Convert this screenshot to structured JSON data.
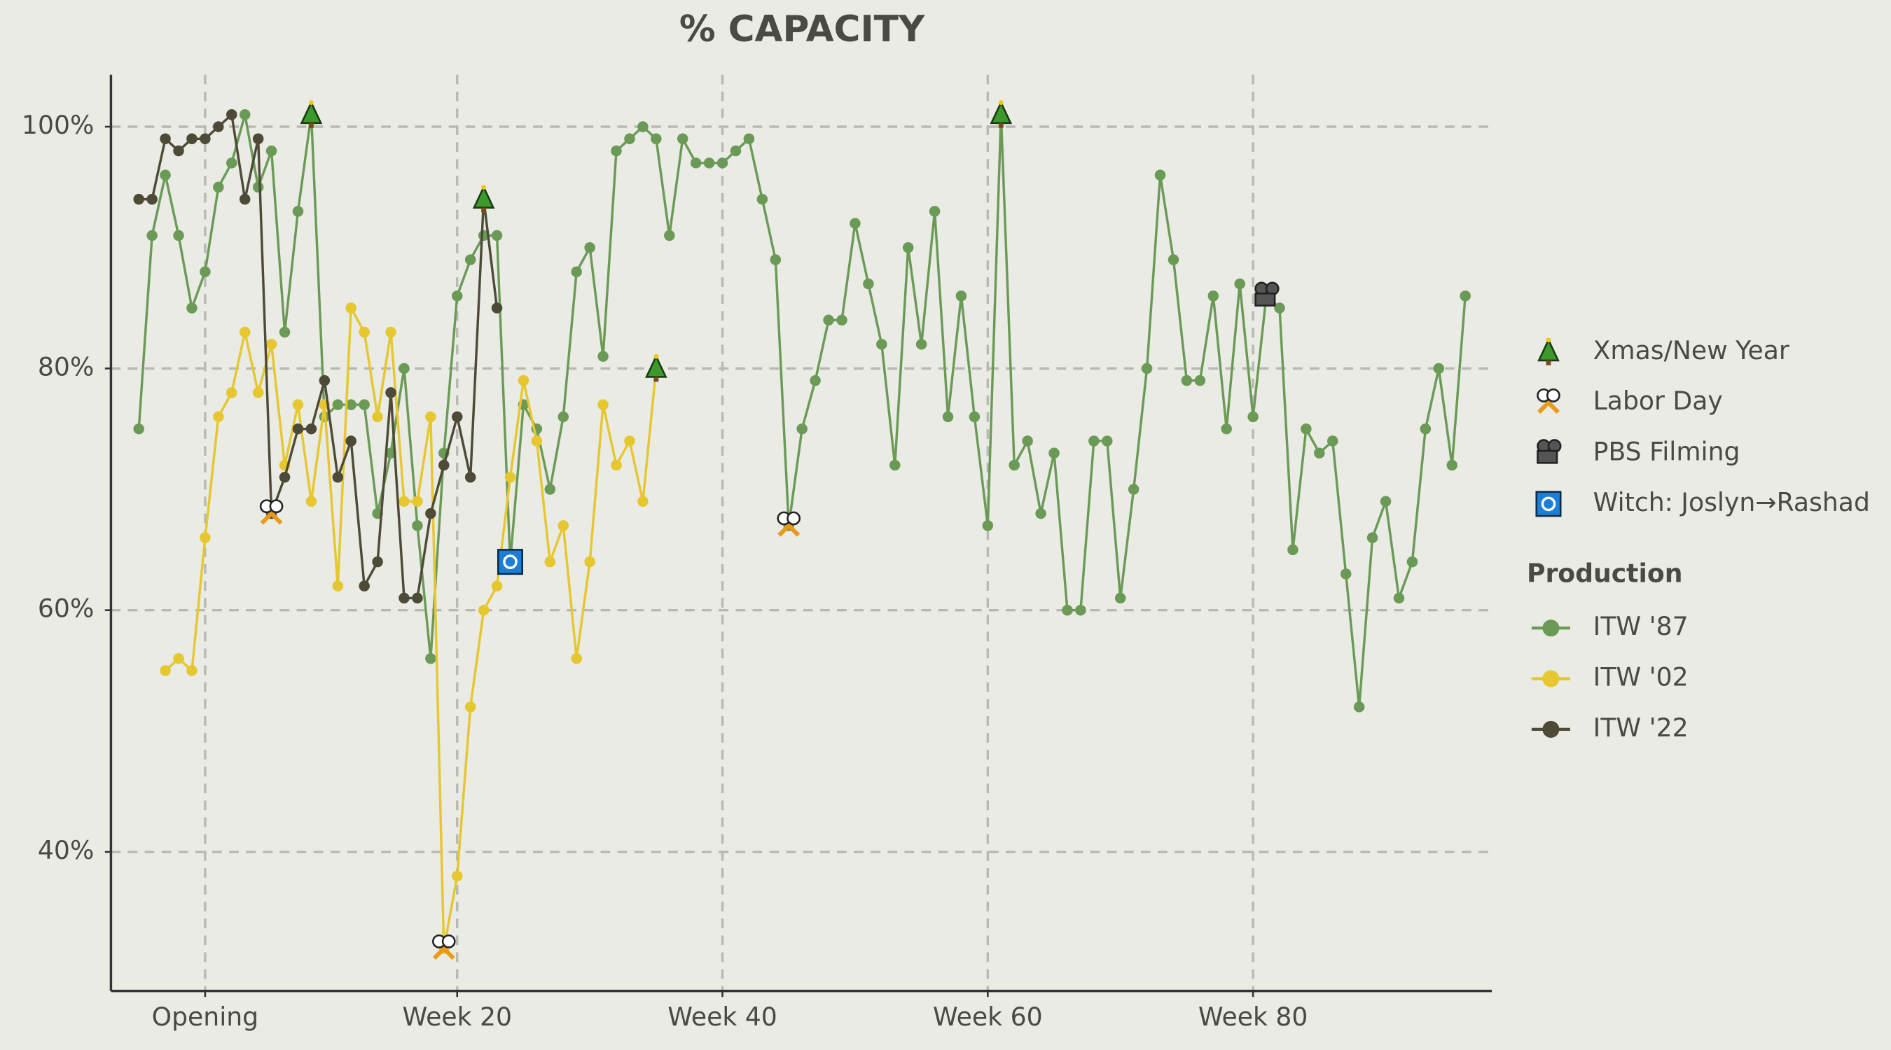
{
  "chart_data": {
    "type": "line",
    "title": "% CAPACITY",
    "x": [
      -4,
      -3,
      -2,
      -1,
      0,
      1,
      2,
      3,
      4,
      5,
      6,
      7,
      8,
      9,
      10,
      11,
      12,
      13,
      14,
      15,
      16,
      17,
      18,
      19,
      20,
      21,
      22,
      23,
      24,
      25,
      26,
      27,
      28,
      29,
      30,
      31,
      32,
      33,
      34,
      35,
      36,
      37,
      38,
      39,
      40,
      41,
      42,
      43,
      44,
      45,
      46,
      47,
      48,
      49,
      50,
      51,
      52,
      53,
      54,
      55,
      56,
      57,
      58,
      59,
      60,
      61,
      62,
      63,
      64,
      65,
      66,
      67,
      68,
      69,
      70,
      71,
      72,
      73,
      74,
      75,
      76,
      77,
      78,
      79,
      80,
      81,
      82,
      83,
      84,
      85,
      86,
      87,
      88,
      89,
      90,
      91,
      92,
      93,
      94,
      95,
      96
    ],
    "series": [
      {
        "name": "ITW '87",
        "color": "#6b9a57",
        "values": [
          75,
          91,
          96,
          91,
          85,
          88,
          95,
          97,
          101,
          95,
          98,
          83,
          93,
          101,
          76,
          77,
          77,
          77,
          68,
          73,
          80,
          67,
          56,
          73,
          86,
          89,
          91,
          91,
          64,
          77,
          75,
          70,
          76,
          88,
          90,
          81,
          98,
          99,
          100,
          99,
          91,
          99,
          97,
          97,
          97,
          98,
          99,
          94,
          89,
          67,
          75,
          79,
          84,
          84,
          92,
          87,
          82,
          72,
          90,
          82,
          93,
          76,
          86,
          76,
          67,
          101,
          72,
          74,
          68,
          73,
          60,
          60,
          74,
          74,
          61,
          70,
          80,
          96,
          89,
          79,
          79,
          86,
          75,
          87,
          76,
          86,
          85,
          65,
          75,
          73,
          74,
          63,
          52,
          66,
          69,
          61,
          64,
          75,
          80,
          72,
          86
        ]
      },
      {
        "name": "ITW '02",
        "color": "#e6c72f",
        "values": [
          null,
          null,
          55,
          56,
          55,
          66,
          76,
          78,
          83,
          78,
          82,
          72,
          77,
          69,
          77,
          62,
          85,
          83,
          76,
          83,
          69,
          69,
          76,
          32,
          38,
          52,
          60,
          62,
          71,
          79,
          74,
          64,
          67,
          56,
          64,
          77,
          72,
          74,
          69,
          80,
          null,
          null,
          null,
          null,
          null,
          null,
          null,
          null,
          null,
          null,
          null,
          null,
          null,
          null,
          null,
          null,
          null,
          null,
          null,
          null,
          null,
          null,
          null,
          null,
          null,
          null,
          null,
          null,
          null,
          null,
          null,
          null,
          null,
          null,
          null,
          null,
          null,
          null,
          null,
          null,
          null,
          null,
          null,
          null,
          null,
          null,
          null,
          null,
          null,
          null,
          null,
          null,
          null,
          null,
          null,
          null,
          null,
          null,
          null,
          null,
          null
        ]
      },
      {
        "name": "ITW '22",
        "color": "#4d4b37",
        "values": [
          94,
          94,
          99,
          98,
          99,
          99,
          100,
          101,
          94,
          99,
          68,
          71,
          75,
          75,
          79,
          71,
          74,
          62,
          64,
          78,
          61,
          61,
          68,
          72,
          76,
          71,
          94,
          85,
          null,
          null,
          null,
          null,
          null,
          null,
          null,
          null,
          null,
          null,
          null,
          null,
          null,
          null,
          null,
          null,
          null,
          null,
          null,
          null,
          null,
          null,
          null,
          null,
          null,
          null,
          null,
          null,
          null,
          null,
          null,
          null,
          null,
          null,
          null,
          null,
          null,
          null,
          null,
          null,
          null,
          null,
          null,
          null,
          null,
          null,
          null,
          null,
          null,
          null,
          null,
          null,
          null,
          null,
          null,
          null,
          null,
          null,
          null,
          null,
          null,
          null,
          null,
          null,
          null,
          null,
          null,
          null,
          null,
          null,
          null,
          null,
          null
        ]
      }
    ],
    "legend_title": "Production",
    "events": [
      {
        "name": "Xmas/New Year",
        "marker": "tree",
        "points": [
          {
            "x": 9,
            "y": 101
          },
          {
            "x": 22,
            "y": 94
          },
          {
            "x": 35,
            "y": 80
          },
          {
            "x": 61,
            "y": 101
          }
        ]
      },
      {
        "name": "Labor Day",
        "marker": "picks",
        "points": [
          {
            "x": 6,
            "y": 68
          },
          {
            "x": 19,
            "y": 32
          },
          {
            "x": 45,
            "y": 67
          }
        ]
      },
      {
        "name": "PBS Filming",
        "marker": "camera",
        "points": [
          {
            "x": 81,
            "y": 86
          }
        ]
      },
      {
        "name": "Witch: Joslyn→Rashad",
        "marker": "swap",
        "points": [
          {
            "x": 24,
            "y": 64
          }
        ]
      }
    ],
    "xlim": [
      -6.1,
      98
    ],
    "ylim": [
      28.5,
      104.3
    ],
    "xticks": [
      {
        "value": 1,
        "label": "Opening"
      },
      {
        "value": 20,
        "label": "Week 20"
      },
      {
        "value": 40,
        "label": "Week 40"
      },
      {
        "value": 60,
        "label": "Week 60"
      },
      {
        "value": 80,
        "label": "Week 80"
      }
    ],
    "yticks": [
      {
        "value": 40,
        "label": "40%"
      },
      {
        "value": 60,
        "label": "60%"
      },
      {
        "value": 80,
        "label": "80%"
      },
      {
        "value": 100,
        "label": "100%"
      }
    ],
    "grid": true
  }
}
